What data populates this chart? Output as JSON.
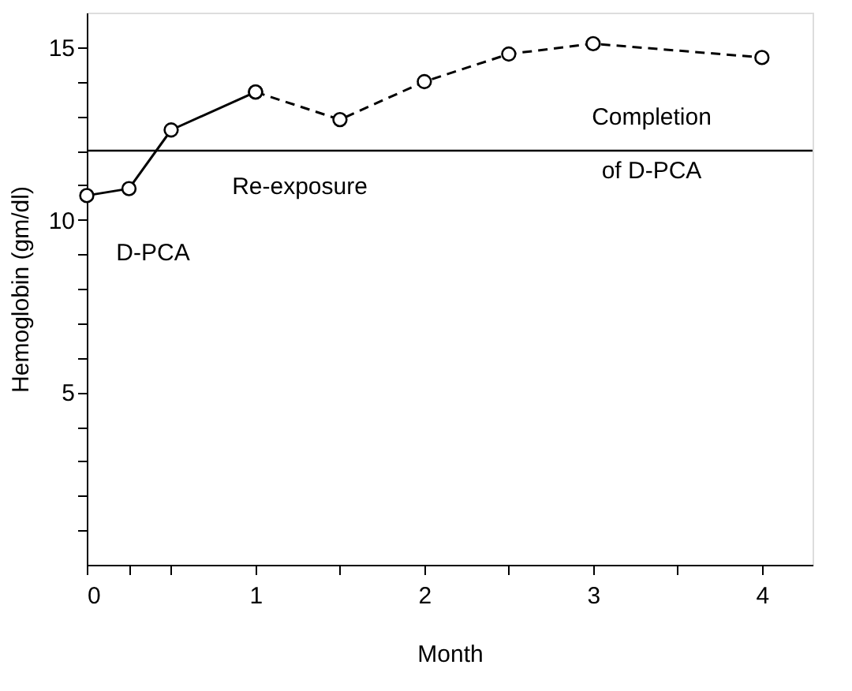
{
  "chart_data": {
    "type": "line",
    "xlabel": "Month",
    "ylabel": "Hemoglobin (gm/dl)",
    "series": [
      {
        "color": "#000000",
        "line_style": "solid",
        "x": [
          0,
          0.25,
          0.5,
          1
        ],
        "values": [
          10.7,
          10.9,
          12.6,
          13.7
        ]
      },
      {
        "color": "#000000",
        "line_style": "dashed",
        "x": [
          1,
          1.5,
          2,
          2.5,
          3,
          4
        ],
        "values": [
          13.7,
          12.9,
          14.0,
          14.8,
          15.1,
          14.7
        ]
      }
    ],
    "marker": "circle",
    "xlim": [
      0,
      4.3
    ],
    "ylim": [
      0,
      16
    ],
    "xticks": [
      0,
      {
        "value": 0.25,
        "label": null
      },
      {
        "value": 0.5,
        "label": null
      },
      1,
      {
        "value": 1.5,
        "label": null
      },
      2,
      {
        "value": 2.5,
        "label": null
      },
      3,
      {
        "value": 3.5,
        "label": null
      },
      4
    ],
    "yticks": [
      {
        "value": 1,
        "label": null
      },
      {
        "value": 2,
        "label": null
      },
      {
        "value": 3,
        "label": null
      },
      {
        "value": 4,
        "label": null
      },
      5,
      {
        "value": 6,
        "label": null
      },
      {
        "value": 7,
        "label": null
      },
      {
        "value": 8,
        "label": null
      },
      {
        "value": 9,
        "label": null
      },
      10,
      {
        "value": 11,
        "label": null
      },
      {
        "value": 12,
        "label": null
      },
      {
        "value": 13,
        "label": null
      },
      {
        "value": 14,
        "label": null
      },
      15
    ],
    "ref_lines": [
      {
        "axis": "y",
        "value": 12,
        "label": null,
        "color": "#000000",
        "line_style": "solid"
      }
    ],
    "annotations": [
      "D-PCA",
      "Re-exposure",
      "Completion\nof D-PCA"
    ],
    "grid": false
  }
}
